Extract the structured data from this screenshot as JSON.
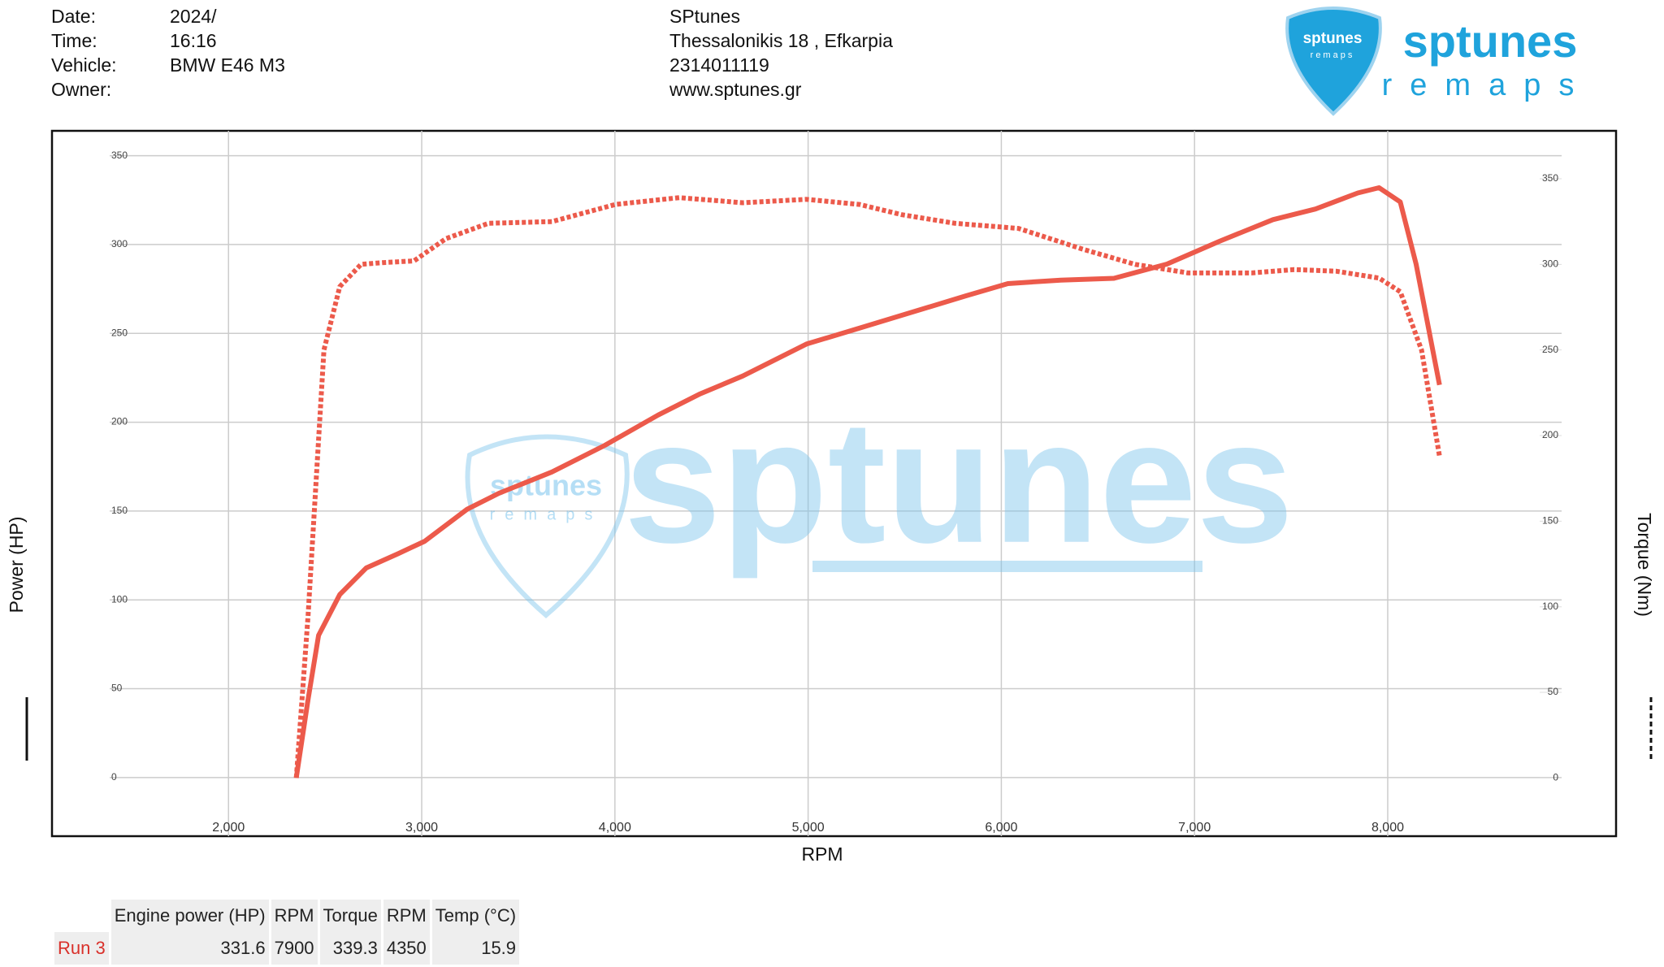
{
  "header": {
    "fields": [
      {
        "label": "Date:",
        "value": "2024/"
      },
      {
        "label": "Time:",
        "value": "16:16"
      },
      {
        "label": "Vehicle:",
        "value": "BMW E46 M3"
      },
      {
        "label": "Owner:"
      }
    ],
    "shop": [
      "SPtunes",
      "Thessalonikis 18 , Efkarpia",
      "2314011119",
      "www.sptunes.gr"
    ]
  },
  "logo": {
    "name": "sptunes",
    "tagline": "remaps"
  },
  "chart_data": {
    "type": "line",
    "xlabel": "RPM",
    "ylabel": "Power (HP)",
    "y2label": "Torque (Nm)",
    "xlim": [
      1385,
      8900
    ],
    "ylim": [
      -33,
      364
    ],
    "y2lim": [
      -34,
      378
    ],
    "xticks": [
      {
        "value": 2000,
        "label": "2,000"
      },
      {
        "value": 3000,
        "label": "3,000"
      },
      {
        "value": 4000,
        "label": "4,000"
      },
      {
        "value": 5000,
        "label": "5,000"
      },
      {
        "value": 6000,
        "label": "6,000"
      },
      {
        "value": 7000,
        "label": "7,000"
      },
      {
        "value": 8000,
        "label": "8,000"
      }
    ],
    "yticks": [
      0,
      50,
      100,
      150,
      200,
      250,
      300,
      350
    ],
    "y2ticks": [
      0,
      50,
      100,
      150,
      200,
      250,
      300,
      350
    ],
    "grid": true,
    "series": [
      {
        "color": "#ec5a4b",
        "style": "solid",
        "x": [
          2351,
          2412,
          2466,
          2576,
          2713,
          2878,
          3015,
          3235,
          3400,
          3674,
          3948,
          4223,
          4442,
          4662,
          4991,
          5266,
          5540,
          5814,
          6034,
          6308,
          6583,
          6857,
          7132,
          7406,
          7626,
          7845,
          7955,
          8065,
          8147,
          8268
        ],
        "values": [
          0,
          44,
          80,
          103,
          118,
          126,
          133,
          151,
          160,
          172,
          187,
          204,
          216,
          226,
          244,
          253,
          262,
          271,
          278,
          280,
          281,
          289,
          302,
          314,
          320,
          329,
          332,
          324,
          289,
          221
        ]
      },
      {
        "color": "#ec5a4b",
        "style": "dotted",
        "axis": "y2",
        "x": [
          2351,
          2412,
          2494,
          2576,
          2686,
          2796,
          2960,
          3125,
          3345,
          3674,
          4003,
          4333,
          4662,
          4991,
          5266,
          5485,
          5760,
          6089,
          6418,
          6692,
          6967,
          7296,
          7516,
          7735,
          7955,
          8065,
          8175,
          8268
        ],
        "values": [
          0,
          95,
          250,
          287,
          300,
          301,
          302,
          315,
          324,
          325,
          335,
          339,
          336,
          338,
          335,
          329,
          324,
          321,
          309,
          300,
          295,
          295,
          297,
          296,
          292,
          284,
          250,
          188
        ]
      }
    ]
  },
  "table": {
    "columns": [
      "Engine power (HP)",
      "RPM",
      "Torque",
      "RPM",
      "Temp (°C)"
    ],
    "rows": [
      [
        "Run 3",
        331.6,
        7900,
        339.3,
        4350,
        15.9
      ]
    ]
  }
}
